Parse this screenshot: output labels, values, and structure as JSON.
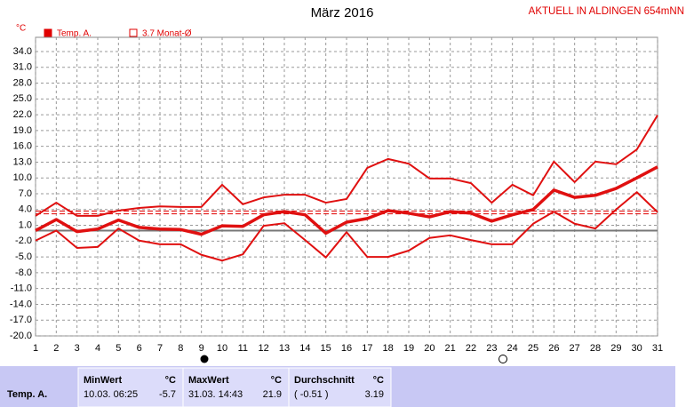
{
  "chart_data": {
    "type": "line",
    "title": "März 2016",
    "y_label": "°C",
    "header_right": "AKTUELL IN ALDINGEN 654mNN",
    "x": [
      1,
      2,
      3,
      4,
      5,
      6,
      7,
      8,
      9,
      10,
      11,
      12,
      13,
      14,
      15,
      16,
      17,
      18,
      19,
      20,
      21,
      22,
      23,
      24,
      25,
      26,
      27,
      28,
      29,
      30,
      31
    ],
    "xlim": [
      1,
      31
    ],
    "xticks": [
      1,
      2,
      3,
      4,
      5,
      6,
      7,
      8,
      9,
      10,
      11,
      12,
      13,
      14,
      15,
      16,
      17,
      18,
      19,
      20,
      21,
      22,
      23,
      24,
      25,
      26,
      27,
      28,
      29,
      30,
      31
    ],
    "ylim": [
      -20,
      36.7
    ],
    "yticks": [
      {
        "value": 34,
        "label": "34.0"
      },
      {
        "value": 31,
        "label": "31.0"
      },
      {
        "value": 28,
        "label": "28.0"
      },
      {
        "value": 25,
        "label": "25.0"
      },
      {
        "value": 22,
        "label": "22.0"
      },
      {
        "value": 19,
        "label": "19.0"
      },
      {
        "value": 16,
        "label": "16.0"
      },
      {
        "value": 13,
        "label": "13.0"
      },
      {
        "value": 10,
        "label": "10.0"
      },
      {
        "value": 7,
        "label": "7.0"
      },
      {
        "value": 4,
        "label": "4.0"
      },
      {
        "value": 1,
        "label": "1.0"
      },
      {
        "value": -2,
        "label": "-2.0"
      },
      {
        "value": -5,
        "label": "-5.0"
      },
      {
        "value": -8,
        "label": "-8.0"
      },
      {
        "value": -11,
        "label": "-11.0"
      },
      {
        "value": -14,
        "label": "-14.0"
      },
      {
        "value": -17,
        "label": "-17.0"
      },
      {
        "value": -20,
        "label": "-20.0"
      }
    ],
    "grid": true,
    "legend": [
      {
        "name": "Temp. A.",
        "color": "#e00000",
        "filled": true
      },
      {
        "name": "3.7 Monat-Ø",
        "color": "#e00000",
        "filled": false
      }
    ],
    "series": [
      {
        "color": "#e01010",
        "width": 2,
        "values": [
          2.8,
          5.3,
          2.8,
          2.8,
          3.8,
          4.3,
          4.6,
          4.5,
          4.5,
          8.7,
          5.0,
          6.3,
          6.8,
          6.8,
          5.3,
          6.0,
          11.9,
          13.6,
          12.7,
          9.9,
          9.9,
          9.0,
          5.3,
          8.7,
          6.7,
          13.1,
          9.2,
          13.1,
          12.6,
          15.4,
          21.9
        ]
      },
      {
        "color": "#e01010",
        "width": 3.5,
        "values": [
          0,
          2.1,
          -0.2,
          0.3,
          2.0,
          0.6,
          0.3,
          0.2,
          -0.7,
          0.9,
          0.8,
          3.0,
          3.6,
          3.0,
          -0.5,
          1.6,
          2.3,
          3.8,
          3.3,
          2.6,
          3.6,
          3.3,
          1.8,
          3.0,
          4.0,
          7.7,
          6.3,
          6.7,
          8.0,
          10.0,
          12.1
        ]
      },
      {
        "color": "#e01010",
        "width": 2,
        "values": [
          -1.9,
          0,
          -3.3,
          -3.1,
          0.4,
          -1.9,
          -2.6,
          -2.6,
          -4.6,
          -5.7,
          -4.5,
          0.9,
          1.4,
          -1.8,
          -5.1,
          -0.3,
          -5.0,
          -5.0,
          -3.8,
          -1.4,
          -0.9,
          -1.8,
          -2.6,
          -2.6,
          1.3,
          3.6,
          1.3,
          0.4,
          4.0,
          7.3,
          3.5
        ]
      }
    ],
    "reference_value": 3.7,
    "zero_line": 0,
    "stats": {
      "row_label": "Temp. A.",
      "columns": [
        {
          "header": "MinWert",
          "unit": "°C",
          "time": "10.03.  06:25",
          "value": -5.7
        },
        {
          "header": "MaxWert",
          "unit": "°C",
          "time": "31.03.  14:43",
          "value": 21.9
        },
        {
          "header": "Durchschnitt",
          "unit": "°C",
          "time": "( -0.51 )",
          "value": 3.19
        }
      ]
    }
  }
}
